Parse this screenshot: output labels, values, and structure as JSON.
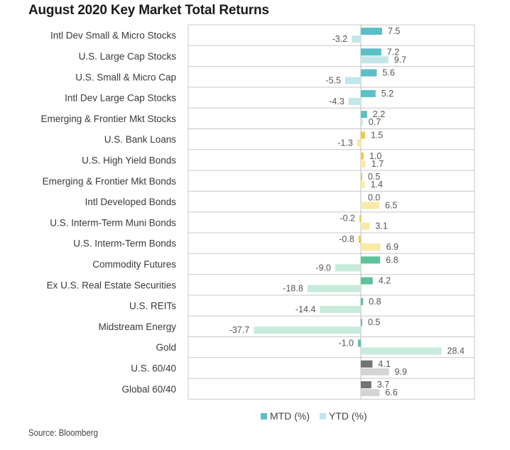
{
  "chart_data": {
    "type": "bar",
    "orientation": "horizontal",
    "title": "August 2020 Key Market Total Returns",
    "xlabel": "",
    "ylabel": "",
    "xlim": [
      -40,
      40
    ],
    "grid": "horizontal row separators",
    "legend_position": "bottom",
    "categories": [
      "Intl Dev Small & Micro Stocks",
      "U.S. Large Cap Stocks",
      "U.S. Small & Micro Cap",
      "Intl Dev Large Cap Stocks",
      "Emerging & Frontier Mkt Stocks",
      "U.S. Bank Loans",
      "U.S. High Yield Bonds",
      "Emerging & Frontier Mkt Bonds",
      "Intl Developed Bonds",
      "U.S. Interm-Term Muni Bonds",
      "U.S. Interm-Term Bonds",
      "Commodity Futures",
      "Ex U.S. Real Estate Securities",
      "U.S. REITs",
      "Midstream Energy",
      "Gold",
      "U.S. 60/40",
      "Global 60/40"
    ],
    "groups": [
      "equity",
      "equity",
      "equity",
      "equity",
      "equity",
      "fixed",
      "fixed",
      "fixed",
      "fixed",
      "fixed",
      "fixed",
      "real",
      "real",
      "real",
      "real",
      "real",
      "balanced",
      "balanced"
    ],
    "series": [
      {
        "name": "MTD (%)",
        "values": [
          7.5,
          7.2,
          5.6,
          5.2,
          2.2,
          1.5,
          1.0,
          0.5,
          0.0,
          -0.2,
          -0.8,
          6.8,
          4.2,
          0.8,
          0.5,
          -1.0,
          4.1,
          3.7
        ]
      },
      {
        "name": "YTD (%)",
        "values": [
          -3.2,
          9.7,
          -5.5,
          -4.3,
          0.7,
          -1.3,
          1.7,
          1.4,
          6.5,
          3.1,
          6.9,
          -9.0,
          -18.8,
          -14.4,
          -37.7,
          28.4,
          9.9,
          6.6
        ]
      }
    ],
    "colors": {
      "equity": {
        "mtd": "#5bbfc6",
        "ytd": "#c3e7e8"
      },
      "fixed": {
        "mtd": "#f2c94c",
        "ytd": "#fbe9a6"
      },
      "real": {
        "mtd": "#5dc39a",
        "ytd": "#c6ebdb"
      },
      "balanced": {
        "mtd": "#737373",
        "ytd": "#d4d4d4"
      }
    },
    "legend": [
      {
        "label": "MTD (%)",
        "color": "#5bbfc6"
      },
      {
        "label": "YTD (%)",
        "color": "#c3e7e8"
      }
    ]
  },
  "footer": {
    "source": "Source: Bloomberg"
  }
}
